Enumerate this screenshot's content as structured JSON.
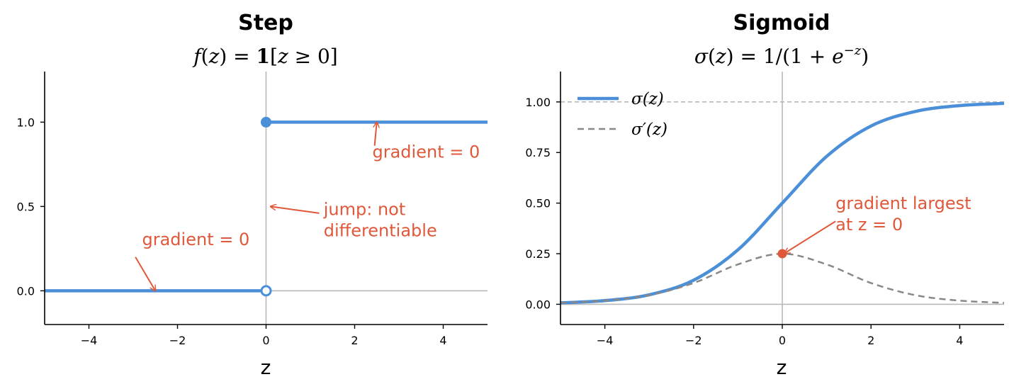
{
  "colors": {
    "primary": "#4a8fd8",
    "annotation": "#e0583a",
    "derivative": "#888888",
    "reference": "#b8b8b8",
    "axis": "#000000"
  },
  "chart_data": [
    {
      "type": "line",
      "title": "Step",
      "subtitle": "f(z) = 1[z ≥ 0]",
      "xlabel": "z",
      "ylabel": "",
      "xlim": [
        -5,
        5
      ],
      "ylim": [
        -0.2,
        1.3
      ],
      "xticks": [
        -4,
        -2,
        0,
        2,
        4
      ],
      "xtick_labels": [
        "−4",
        "−2",
        "0",
        "2",
        "4"
      ],
      "yticks": [
        0.0,
        0.5,
        1.0
      ],
      "ytick_labels": [
        "0.0",
        "0.5",
        "1.0"
      ],
      "series": [
        {
          "segments": [
            {
              "x": [
                -5,
                0
              ],
              "y": [
                0,
                0
              ]
            },
            {
              "x": [
                0,
                5
              ],
              "y": [
                1,
                1
              ]
            }
          ]
        }
      ],
      "markers": [
        {
          "x": 0,
          "y": 1,
          "style": "filled"
        },
        {
          "x": 0,
          "y": 0,
          "style": "open"
        }
      ],
      "reference_lines": [
        {
          "axis": "x",
          "value": 0
        },
        {
          "axis": "y",
          "value": 0
        }
      ],
      "annotations": [
        {
          "text": "gradient = 0",
          "point": [
            2.5,
            1.0
          ],
          "text_at": [
            2.4,
            0.79
          ]
        },
        {
          "text": "jump: not\ndifferentiable",
          "point": [
            0.1,
            0.5
          ],
          "text_at": [
            1.3,
            0.45
          ]
        },
        {
          "text": "gradient = 0",
          "point": [
            -2.5,
            0.0
          ],
          "text_at": [
            -2.8,
            0.27
          ]
        }
      ],
      "grid": false
    },
    {
      "type": "line",
      "title": "Sigmoid",
      "subtitle": "σ(z) = 1/(1 + e^{−z})",
      "xlabel": "z",
      "ylabel": "",
      "xlim": [
        -5,
        5
      ],
      "ylim": [
        -0.1,
        1.15
      ],
      "xticks": [
        -4,
        -2,
        0,
        2,
        4
      ],
      "xtick_labels": [
        "−4",
        "−2",
        "0",
        "2",
        "4"
      ],
      "yticks": [
        0.0,
        0.25,
        0.5,
        0.75,
        1.0
      ],
      "ytick_labels": [
        "0.00",
        "0.25",
        "0.50",
        "0.75",
        "1.00"
      ],
      "series": [
        {
          "name": "σ(z)",
          "style": "solid",
          "x": [
            -5,
            -4,
            -3,
            -2,
            -1,
            0,
            1,
            2,
            3,
            4,
            5
          ],
          "y": [
            0.007,
            0.018,
            0.047,
            0.119,
            0.269,
            0.5,
            0.731,
            0.881,
            0.953,
            0.982,
            0.993
          ]
        },
        {
          "name": "σ′(z)",
          "style": "dashed",
          "x": [
            -5,
            -4,
            -3,
            -2,
            -1,
            0,
            1,
            2,
            3,
            4,
            5
          ],
          "y": [
            0.007,
            0.018,
            0.045,
            0.105,
            0.197,
            0.25,
            0.197,
            0.105,
            0.045,
            0.018,
            0.007
          ]
        }
      ],
      "markers": [
        {
          "x": 0,
          "y": 0.25,
          "style": "filled-annotation"
        }
      ],
      "reference_lines": [
        {
          "axis": "x",
          "value": 0
        },
        {
          "axis": "y",
          "value": 0
        },
        {
          "axis": "y",
          "value": 1,
          "style": "dashed"
        }
      ],
      "annotations": [
        {
          "text": "gradient largest\nat z = 0",
          "point": [
            0.05,
            0.252
          ],
          "text_at": [
            1.2,
            0.47
          ]
        }
      ],
      "legend": "top-left",
      "grid": false
    }
  ]
}
